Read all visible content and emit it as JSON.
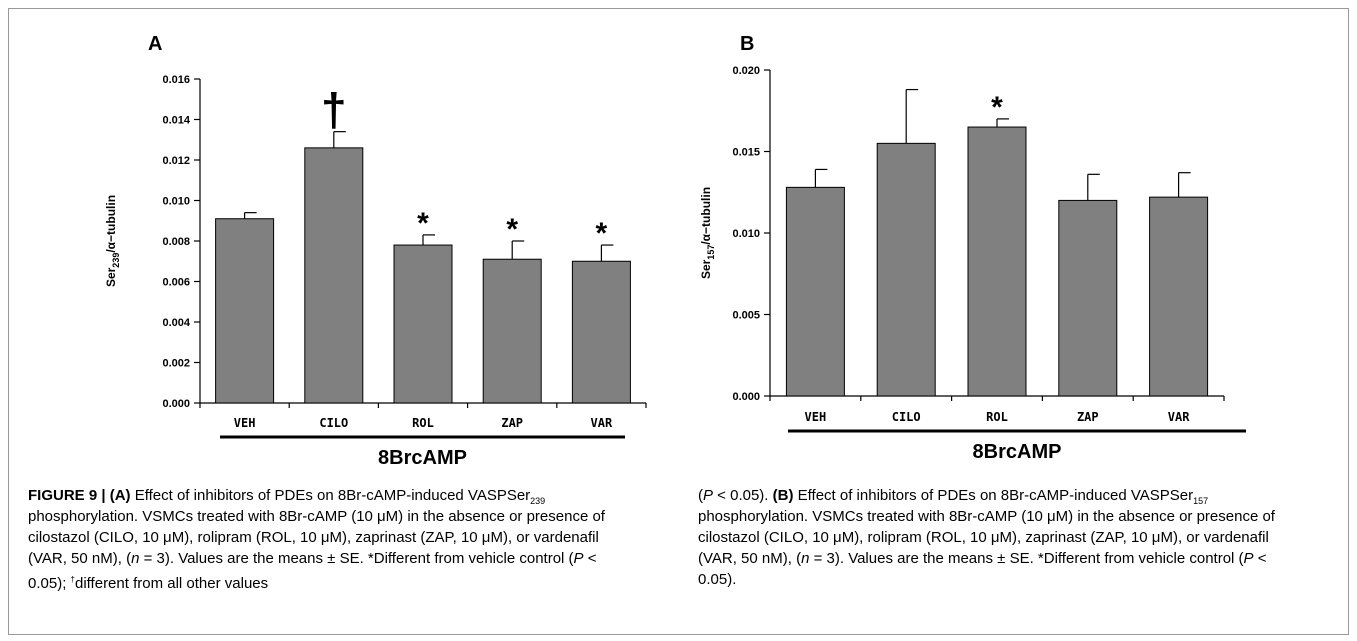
{
  "chart_data": [
    {
      "type": "bar",
      "panel_label": "A",
      "categories": [
        "VEH",
        "CILO",
        "ROL",
        "ZAP",
        "VAR"
      ],
      "values": [
        0.0091,
        0.0126,
        0.0078,
        0.0071,
        0.007
      ],
      "errors": [
        0.0003,
        0.0008,
        0.0005,
        0.0009,
        0.0008
      ],
      "annotations": [
        "",
        "†",
        "*",
        "*",
        "*"
      ],
      "ylabel_main": "Ser",
      "ylabel_sub": "239",
      "ylabel_rest": "/α−tubulin",
      "ylim": [
        0,
        0.016
      ],
      "yticks": [
        0,
        0.002,
        0.004,
        0.006,
        0.008,
        0.01,
        0.012,
        0.014,
        0.016
      ],
      "ytick_labels": [
        "0.000",
        "0.002",
        "0.004",
        "0.006",
        "0.008",
        "0.010",
        "0.012",
        "0.014",
        "0.016"
      ],
      "group_label": "8BrcAMP",
      "bar_color": "#808080"
    },
    {
      "type": "bar",
      "panel_label": "B",
      "categories": [
        "VEH",
        "CILO",
        "ROL",
        "ZAP",
        "VAR"
      ],
      "values": [
        0.0128,
        0.0155,
        0.0165,
        0.012,
        0.0122
      ],
      "errors": [
        0.0011,
        0.0033,
        0.0005,
        0.0016,
        0.0015
      ],
      "annotations": [
        "",
        "",
        "*",
        "",
        ""
      ],
      "ylabel_main": "Ser",
      "ylabel_sub": "157",
      "ylabel_rest": "/α−tubulin",
      "ylim": [
        0,
        0.02
      ],
      "yticks": [
        0,
        0.005,
        0.01,
        0.015,
        0.02
      ],
      "ytick_labels": [
        "0.000",
        "0.005",
        "0.010",
        "0.015",
        "0.020"
      ],
      "group_label": "8BrcAMP",
      "bar_color": "#808080"
    }
  ],
  "caption": {
    "figure_label": "FIGURE 9 | ",
    "a_label": "(A)",
    "a_text_1": " Effect of inhibitors of PDEs on 8Br-cAMP-induced VASPSer",
    "a_sub": "239",
    "a_text_2": " phosphorylation. VSMCs treated with 8Br-cAMP (10 μM) in the absence or presence of cilostazol (CILO, 10 μM), rolipram (ROL, 10 μM), zaprinast (ZAP, 10 μM), or vardenafil (VAR, 50 nM), (",
    "n_var": "n",
    "a_text_3": " = 3). Values are the means ± SE. *Different from vehicle control (",
    "p_var": "P",
    "a_text_4": " < 0.05); ",
    "dagger": "†",
    "a_text_5": "different from all other values",
    "right_start": "(",
    "right_p": "P",
    "right_text_1": " < 0.05). ",
    "b_label": "(B)",
    "b_text_1": " Effect of inhibitors of PDEs on 8Br-cAMP-induced VASPSer",
    "b_sub": "157",
    "b_text_2": " phosphorylation. VSMCs treated with 8Br-cAMP (10 μM) in the absence or presence of cilostazol (CILO, 10 μM), rolipram (ROL, 10 μM), zaprinast (ZAP, 10 μM), or vardenafil (VAR, 50 nM), (",
    "b_text_3": " = 3). Values are the means ± SE. *Different from vehicle control (",
    "b_text_4": " < 0.05)."
  }
}
